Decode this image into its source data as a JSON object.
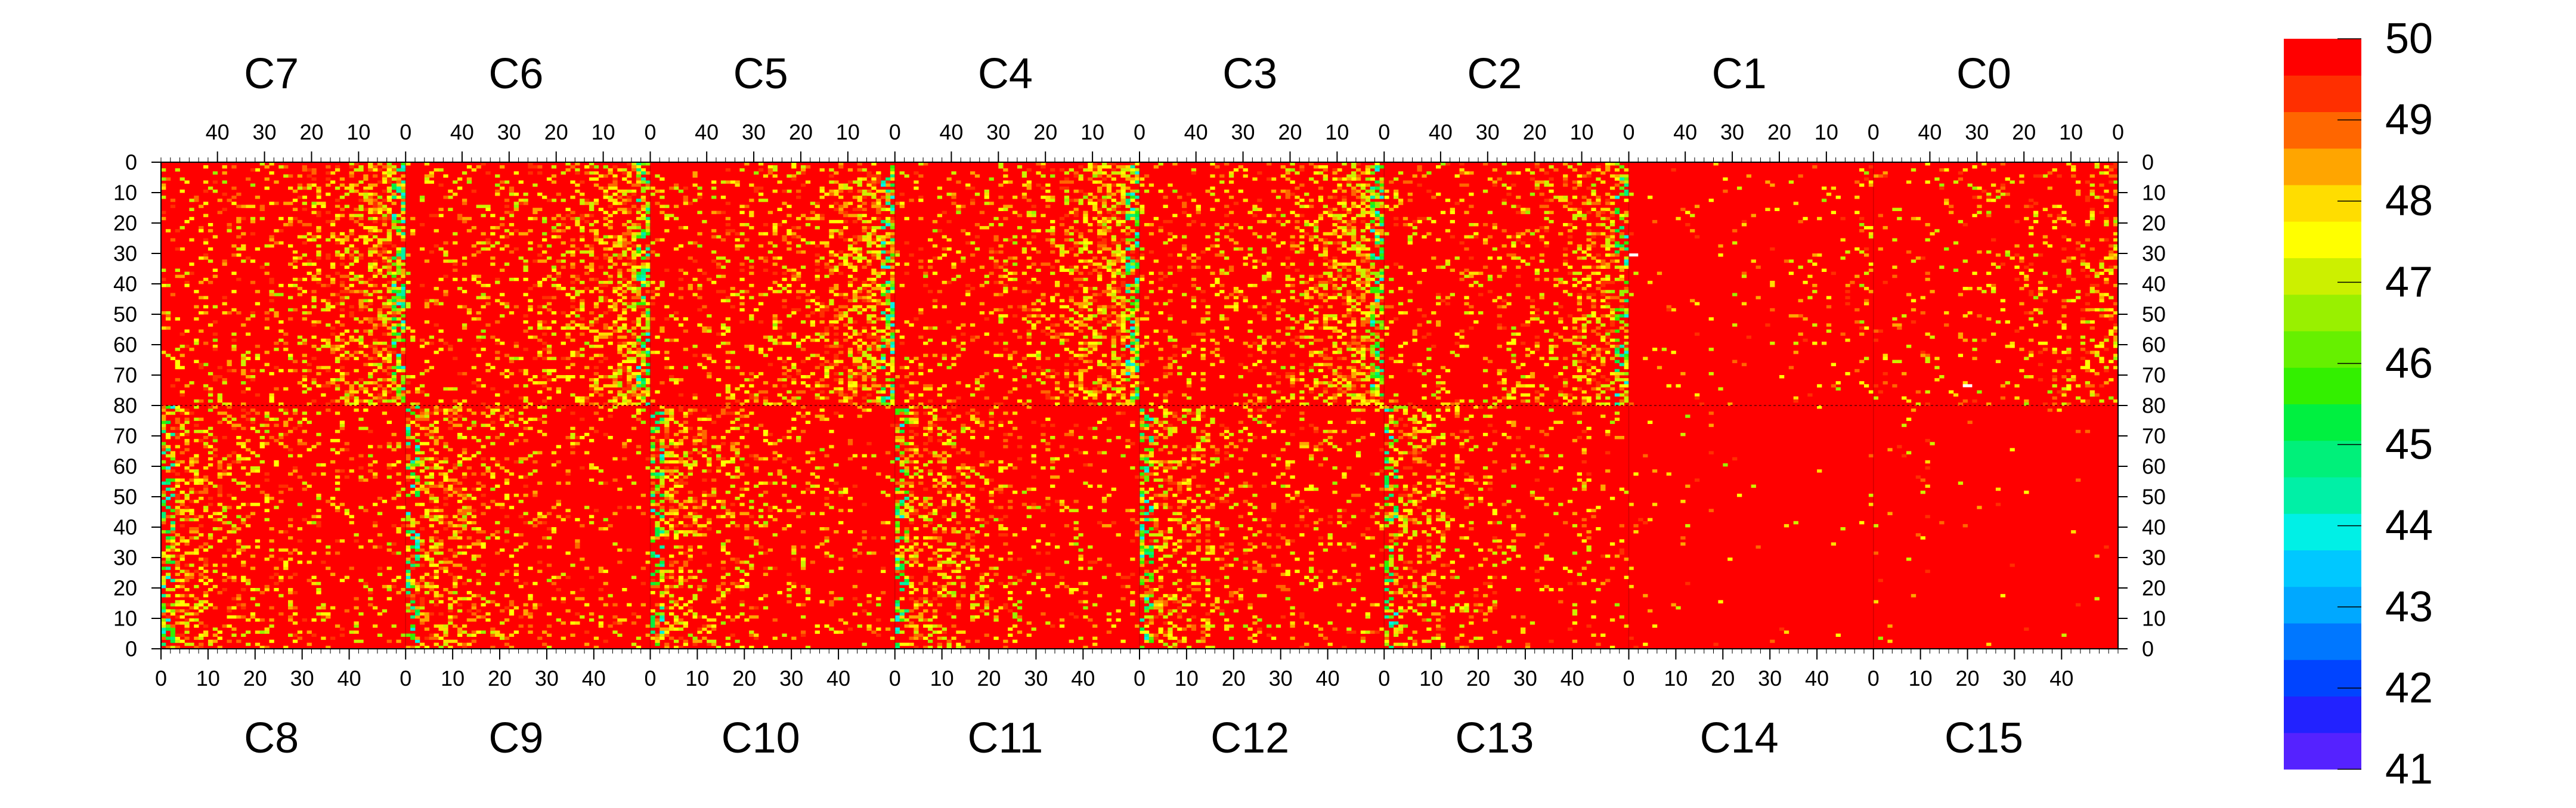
{
  "chart_data": {
    "type": "heatmap",
    "title": "",
    "layout": "two rows of eight chip panels sharing one color scale",
    "top_row_chips": [
      "C7",
      "C6",
      "C5",
      "C4",
      "C3",
      "C2",
      "C1",
      "C0"
    ],
    "bottom_row_chips": [
      "C8",
      "C9",
      "C10",
      "C11",
      "C12",
      "C13",
      "C14",
      "C15"
    ],
    "columns_per_chip": 52,
    "rows_per_half": 80,
    "top_axis_ticks": [
      "40",
      "30",
      "20",
      "10",
      "0"
    ],
    "top_axis_tick_values": [
      40,
      30,
      20,
      10,
      0
    ],
    "bottom_axis_ticks": [
      "0",
      "10",
      "20",
      "30",
      "40"
    ],
    "bottom_axis_tick_values": [
      0,
      10,
      20,
      30,
      40
    ],
    "left_axis_ticks_top_half": [
      "0",
      "10",
      "20",
      "30",
      "40",
      "50",
      "60",
      "70",
      "80"
    ],
    "left_axis_ticks_bottom_half": [
      "70",
      "60",
      "50",
      "40",
      "30",
      "20",
      "10",
      "0"
    ],
    "right_axis_ticks_top_half": [
      "0",
      "10",
      "20",
      "30",
      "40",
      "50",
      "60",
      "70",
      "80"
    ],
    "right_axis_ticks_bottom_half": [
      "70",
      "60",
      "50",
      "40",
      "30",
      "20",
      "10",
      "0"
    ],
    "z_range": [
      41,
      50
    ],
    "colorbar_ticks": [
      "50",
      "49",
      "48",
      "47",
      "46",
      "45",
      "44",
      "43",
      "42",
      "41"
    ],
    "colorbar_tick_values": [
      50,
      49,
      48,
      47,
      46,
      45,
      44,
      43,
      42,
      41
    ],
    "palette": [
      "#7722ff",
      "#5522ff",
      "#2222ff",
      "#0044ff",
      "#0077ff",
      "#00a8ff",
      "#00c8ff",
      "#00f0e6",
      "#00f0a6",
      "#00f07a",
      "#00f040",
      "#33f000",
      "#66f000",
      "#99f000",
      "#ccf000",
      "#ffff00",
      "#ffdd00",
      "#ffa500",
      "#ff6600",
      "#ff2f00",
      "#ff0000"
    ],
    "background_value": 50,
    "chip_edge_noise_level": {
      "C7": 0.55,
      "C6": 0.55,
      "C5": 0.55,
      "C4": 0.55,
      "C3": 0.55,
      "C2": 0.45,
      "C1": 0.1,
      "C0": 0.25,
      "C8": 0.45,
      "C9": 0.45,
      "C10": 0.45,
      "C11": 0.45,
      "C12": 0.45,
      "C13": 0.35,
      "C14": 0.03,
      "C15": 0.03
    },
    "dead_pixels": [
      {
        "chip": "C1",
        "column": 51,
        "row": 30
      },
      {
        "chip": "C0",
        "column": 32,
        "row": 73
      }
    ]
  }
}
